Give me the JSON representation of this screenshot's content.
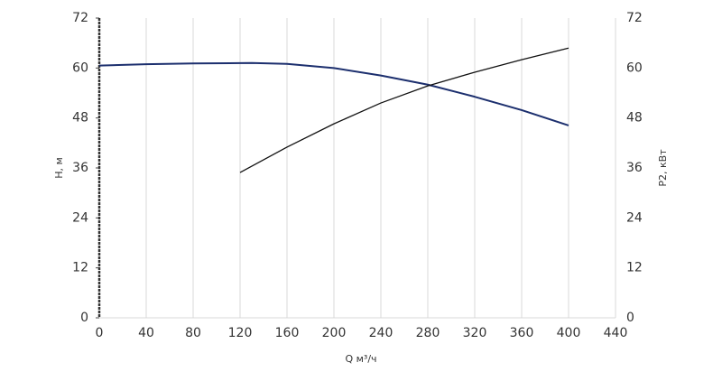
{
  "chart_data": {
    "type": "line",
    "xlabel": "Q м³/ч",
    "ylabel": "H, м",
    "y2label": "P2, кВт",
    "grid": true,
    "xlim": [
      0,
      440
    ],
    "xticks": [
      0,
      40,
      80,
      120,
      160,
      200,
      240,
      280,
      320,
      360,
      400,
      440
    ],
    "ylim": [
      0,
      72
    ],
    "yticks": [
      0,
      12,
      24,
      36,
      48,
      60,
      72
    ],
    "y2lim": [
      0,
      72
    ],
    "y2ticks": [
      0,
      12,
      24,
      36,
      48,
      60,
      72
    ],
    "series": [
      {
        "name": "H",
        "color": "#1c2f6e",
        "x": [
          0,
          40,
          80,
          130,
          160,
          200,
          240,
          280,
          320,
          360,
          400
        ],
        "values": [
          60.6,
          60.9,
          61.1,
          61.2,
          61.0,
          60.0,
          58.2,
          56.0,
          53.1,
          49.9,
          46.2
        ]
      },
      {
        "name": "P2",
        "color": "#111111",
        "axis": "y2",
        "x": [
          120,
          160,
          200,
          240,
          280,
          320,
          360,
          400
        ],
        "values": [
          34.9,
          41.0,
          46.6,
          51.6,
          55.7,
          59.0,
          62.0,
          64.8
        ]
      }
    ]
  }
}
